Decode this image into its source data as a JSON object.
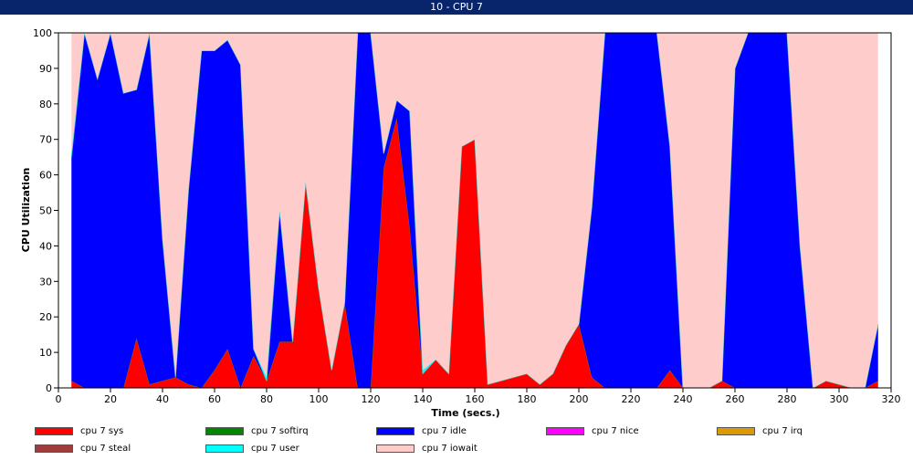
{
  "window": {
    "title": "10 - CPU 7"
  },
  "chart_data": {
    "type": "area",
    "stacked": true,
    "title": "",
    "xlabel": "Time (secs.)",
    "ylabel": "CPU Utilization",
    "xlim": [
      0,
      320
    ],
    "ylim": [
      0,
      100
    ],
    "x_ticks": [
      0,
      20,
      40,
      60,
      80,
      100,
      120,
      140,
      160,
      180,
      200,
      220,
      240,
      260,
      280,
      300,
      320
    ],
    "y_ticks": [
      0,
      10,
      20,
      30,
      40,
      50,
      60,
      70,
      80,
      90,
      100
    ],
    "grid": false,
    "legend_position": "bottom",
    "x": [
      5,
      10,
      15,
      20,
      25,
      30,
      35,
      40,
      45,
      50,
      55,
      60,
      65,
      70,
      75,
      80,
      85,
      90,
      95,
      100,
      105,
      110,
      115,
      120,
      125,
      130,
      135,
      140,
      145,
      150,
      155,
      160,
      165,
      170,
      175,
      180,
      185,
      190,
      195,
      200,
      205,
      210,
      215,
      220,
      225,
      230,
      235,
      240,
      245,
      250,
      255,
      260,
      265,
      270,
      275,
      280,
      285,
      290,
      295,
      300,
      305,
      310,
      315
    ],
    "series": [
      {
        "name": "cpu 7 sys",
        "color": "#ff0000",
        "values": [
          2,
          0,
          0,
          0,
          0,
          14,
          1,
          2,
          3,
          1,
          0,
          5,
          11,
          0,
          9,
          2,
          13,
          13,
          58,
          28,
          5,
          24,
          0,
          0,
          62,
          76,
          45,
          4,
          8,
          4,
          68,
          70,
          1,
          2,
          3,
          4,
          1,
          4,
          12,
          18,
          3,
          0,
          0,
          0,
          0,
          0,
          5,
          0,
          0,
          0,
          2,
          0,
          0,
          0,
          0,
          0,
          0,
          0,
          2,
          1,
          0,
          0,
          2
        ]
      },
      {
        "name": "cpu 7 softirq",
        "color": "#008800",
        "values": [
          0,
          0,
          0,
          0,
          0,
          0,
          0,
          0,
          0,
          0,
          0,
          0,
          0,
          0,
          0,
          0,
          0,
          0,
          0,
          0,
          0,
          0,
          0,
          0,
          0,
          0,
          0,
          0,
          0,
          0,
          0,
          0,
          0,
          0,
          0,
          0,
          0,
          0,
          0,
          0,
          0,
          0,
          0,
          0,
          0,
          0,
          0,
          0,
          0,
          0,
          0,
          0,
          0,
          0,
          0,
          0,
          0,
          0,
          0,
          0,
          0,
          0,
          0
        ]
      },
      {
        "name": "cpu 7 idle",
        "color": "#0000ff",
        "values": [
          63,
          100,
          87,
          100,
          83,
          70,
          99,
          40,
          0,
          55,
          95,
          90,
          87,
          91,
          2,
          0,
          37,
          0,
          0,
          0,
          0,
          0,
          100,
          100,
          4,
          5,
          33,
          0,
          0,
          0,
          0,
          0,
          0,
          0,
          0,
          0,
          0,
          0,
          0,
          0,
          48,
          100,
          100,
          100,
          100,
          100,
          63,
          0,
          0,
          0,
          0,
          90,
          100,
          100,
          100,
          100,
          40,
          0,
          0,
          0,
          0,
          0,
          16
        ]
      },
      {
        "name": "cpu 7 nice",
        "color": "#ff00ff",
        "values": [
          0,
          0,
          0,
          0,
          0,
          0,
          0,
          0,
          0,
          0,
          0,
          0,
          0,
          0,
          0,
          0,
          0,
          0,
          0,
          0,
          0,
          0,
          0,
          0,
          0,
          0,
          0,
          0,
          0,
          0,
          0,
          0,
          0,
          0,
          0,
          0,
          0,
          0,
          0,
          0,
          0,
          0,
          0,
          0,
          0,
          0,
          0,
          0,
          0,
          0,
          0,
          0,
          0,
          0,
          0,
          0,
          0,
          0,
          0,
          0,
          0,
          0,
          0
        ]
      },
      {
        "name": "cpu 7 irq",
        "color": "#dd9900",
        "values": [
          0,
          0,
          0,
          0,
          0,
          0,
          0,
          0,
          0,
          0,
          0,
          0,
          0,
          0,
          0,
          0,
          0,
          0,
          0,
          0,
          0,
          0,
          0,
          0,
          0,
          0,
          0,
          0,
          0,
          0,
          0,
          0,
          0,
          0,
          0,
          0,
          0,
          0,
          0,
          0,
          0,
          0,
          0,
          0,
          0,
          0,
          0,
          0,
          0,
          0,
          0,
          0,
          0,
          0,
          0,
          0,
          0,
          0,
          0,
          0,
          0,
          0,
          0
        ]
      },
      {
        "name": "cpu 7 steal",
        "color": "#a03c3c",
        "values": [
          0,
          0,
          0,
          0,
          0,
          0,
          0,
          0,
          0,
          0,
          0,
          0,
          0,
          0,
          0,
          0,
          0,
          0,
          0,
          0,
          0,
          0,
          0,
          0,
          0,
          0,
          0,
          0,
          0,
          0,
          0,
          0,
          0,
          0,
          0,
          0,
          0,
          0,
          0,
          0,
          0,
          0,
          0,
          0,
          0,
          0,
          0,
          0,
          0,
          0,
          0,
          0,
          0,
          0,
          0,
          0,
          0,
          0,
          0,
          0,
          0,
          0,
          0
        ]
      },
      {
        "name": "cpu 7 user",
        "color": "#00ffff",
        "values": [
          1,
          0,
          0,
          0,
          0,
          0,
          0,
          0,
          0,
          0,
          0,
          0,
          0,
          0,
          0,
          1,
          0,
          0,
          0,
          0,
          0,
          0,
          0,
          0,
          0,
          0,
          0,
          1,
          0,
          0,
          0,
          0,
          0,
          0,
          0,
          0,
          0,
          0,
          0,
          0,
          0,
          0,
          0,
          0,
          0,
          0,
          0,
          0,
          0,
          0,
          0,
          0,
          0,
          0,
          0,
          0,
          0,
          0,
          0,
          0,
          0,
          0,
          0
        ]
      },
      {
        "name": "cpu 7 iowait",
        "color": "#ffcccc",
        "values": [
          34,
          0,
          13,
          0,
          17,
          16,
          0,
          58,
          97,
          44,
          5,
          5,
          2,
          9,
          89,
          97,
          50,
          87,
          42,
          72,
          95,
          76,
          0,
          0,
          34,
          19,
          22,
          95,
          92,
          96,
          32,
          30,
          99,
          98,
          97,
          96,
          99,
          96,
          88,
          82,
          49,
          0,
          0,
          0,
          0,
          0,
          32,
          100,
          100,
          100,
          98,
          10,
          0,
          0,
          0,
          0,
          60,
          100,
          98,
          99,
          100,
          100,
          82
        ]
      }
    ]
  }
}
